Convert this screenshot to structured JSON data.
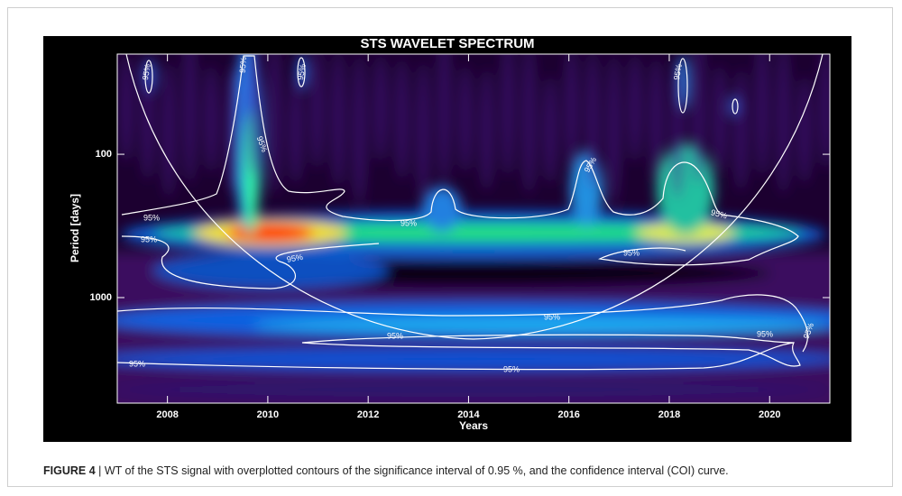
{
  "figure": {
    "label": "FIGURE 4",
    "caption": "| WT of the STS signal with overplotted contours of the significance interval of 0.95 %, and the confidence interval (COI) curve."
  },
  "chart_data": {
    "type": "heatmap",
    "title": "STS WAVELET SPECTRUM",
    "x_label": "Years",
    "y_label": "Period [days]",
    "xlim": [
      2007,
      2021.2
    ],
    "xticks": [
      2008,
      2010,
      2012,
      2014,
      2016,
      2018,
      2020
    ],
    "ylim": [
      20,
      5450
    ],
    "yticks": [
      100,
      1000
    ],
    "log_y": true,
    "y_inverted": true,
    "contour_labels": [
      "95%",
      "95%",
      "95%",
      "95%",
      "95%",
      "95%",
      "95%",
      "95%",
      "95%",
      "95%",
      "95%",
      "95%",
      "95%",
      "95%",
      "95%",
      "95%",
      "95%",
      "95%"
    ]
  }
}
